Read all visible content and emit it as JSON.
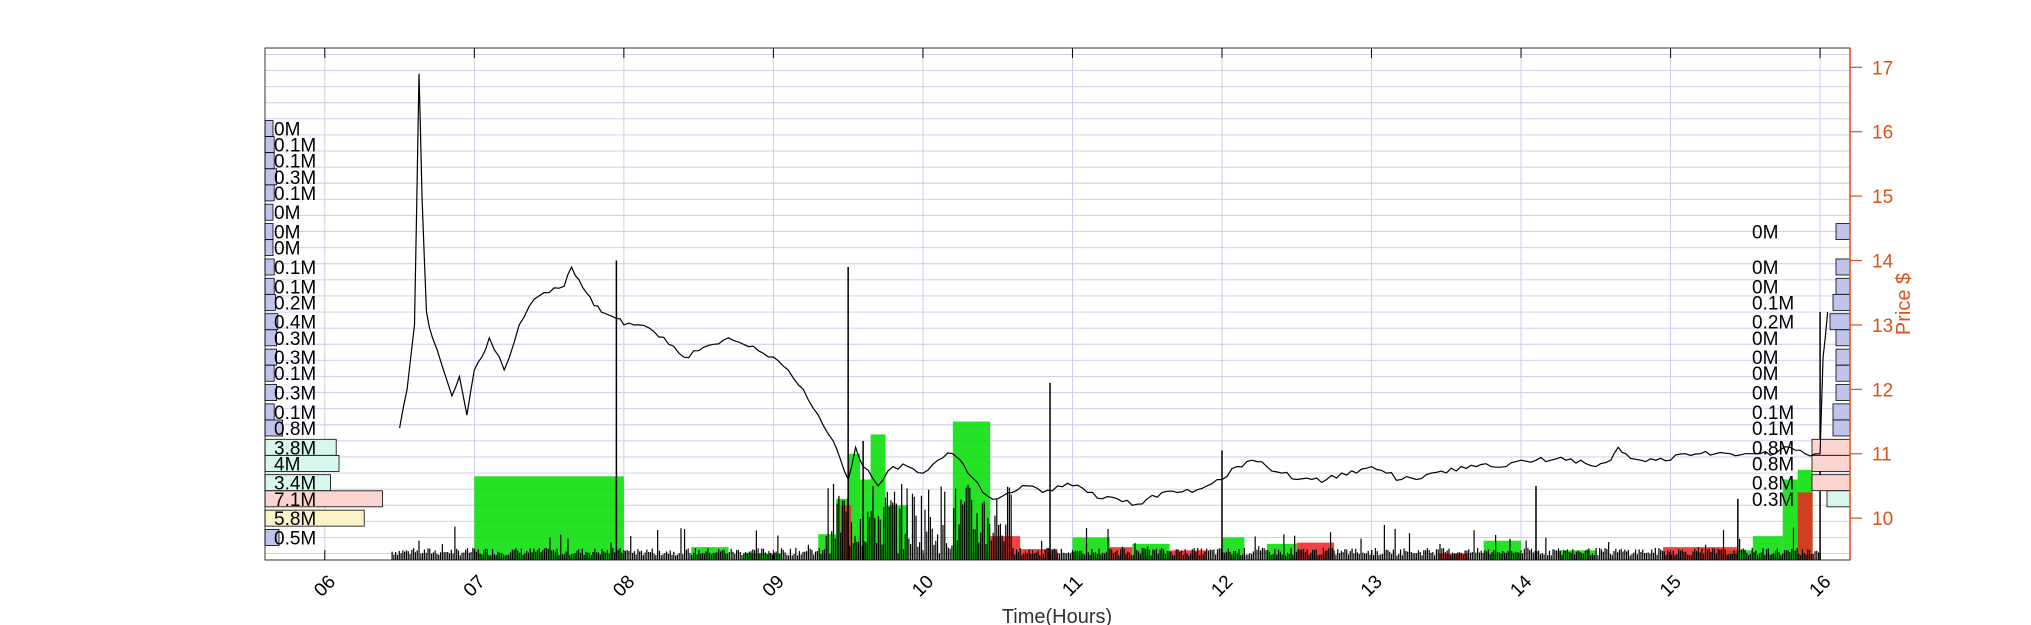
{
  "chart_data": {
    "type": "line",
    "xlabel": "Time(Hours)",
    "ylabel_right": "Price $",
    "x_ticks": [
      "06",
      "07",
      "08",
      "09",
      "10",
      "11",
      "12",
      "13",
      "14",
      "15",
      "16"
    ],
    "x_range": [
      5.6,
      16.2
    ],
    "y_ticks": [
      10,
      11,
      12,
      13,
      14,
      15,
      16,
      17
    ],
    "ylim": [
      9.35,
      17.3
    ],
    "grid": true,
    "price_series": {
      "name": "Price",
      "x": [
        6.5,
        6.55,
        6.6,
        6.63,
        6.65,
        6.68,
        6.72,
        6.78,
        6.85,
        6.9,
        6.95,
        7.0,
        7.05,
        7.1,
        7.2,
        7.3,
        7.4,
        7.5,
        7.6,
        7.65,
        7.7,
        7.75,
        7.8,
        7.85,
        7.95,
        8.0,
        8.1,
        8.2,
        8.3,
        8.4,
        8.5,
        8.6,
        8.7,
        8.8,
        8.9,
        9.0,
        9.1,
        9.2,
        9.3,
        9.4,
        9.45,
        9.5,
        9.55,
        9.6,
        9.7,
        9.8,
        9.9,
        10.0,
        10.1,
        10.2,
        10.25,
        10.3,
        10.4,
        10.5,
        10.6,
        10.7,
        10.8,
        10.9,
        11.0,
        11.1,
        11.2,
        11.3,
        11.4,
        11.5,
        11.6,
        11.7,
        11.8,
        11.9,
        12.0,
        12.1,
        12.2,
        12.3,
        12.4,
        12.5,
        12.6,
        12.7,
        12.8,
        12.9,
        13.0,
        13.1,
        13.2,
        13.3,
        13.4,
        13.5,
        13.6,
        13.7,
        13.8,
        13.9,
        14.0,
        14.1,
        14.2,
        14.3,
        14.4,
        14.5,
        14.6,
        14.65,
        14.7,
        14.8,
        14.9,
        15.0,
        15.1,
        15.2,
        15.3,
        15.4,
        15.5,
        15.6,
        15.7,
        15.8,
        15.9,
        16.0,
        16.02,
        16.05
      ],
      "y": [
        11.4,
        12.0,
        13.0,
        16.9,
        15.0,
        13.2,
        12.8,
        12.4,
        11.9,
        12.2,
        11.6,
        12.3,
        12.5,
        12.8,
        12.3,
        13.0,
        13.4,
        13.5,
        13.6,
        13.9,
        13.7,
        13.5,
        13.3,
        13.2,
        13.1,
        13.0,
        13.0,
        12.9,
        12.7,
        12.5,
        12.6,
        12.7,
        12.8,
        12.7,
        12.6,
        12.5,
        12.3,
        12.0,
        11.6,
        11.2,
        10.9,
        10.6,
        11.1,
        10.8,
        10.5,
        10.8,
        10.8,
        10.7,
        10.9,
        11.0,
        10.9,
        10.7,
        10.4,
        10.3,
        10.4,
        10.5,
        10.4,
        10.5,
        10.5,
        10.4,
        10.3,
        10.3,
        10.2,
        10.3,
        10.4,
        10.4,
        10.4,
        10.5,
        10.6,
        10.8,
        10.9,
        10.8,
        10.7,
        10.6,
        10.6,
        10.6,
        10.7,
        10.7,
        10.8,
        10.7,
        10.6,
        10.6,
        10.7,
        10.7,
        10.8,
        10.8,
        10.8,
        10.8,
        10.9,
        10.9,
        10.9,
        10.9,
        10.9,
        10.8,
        10.9,
        11.1,
        11.0,
        10.9,
        10.9,
        10.9,
        11.0,
        11.0,
        11.0,
        11.0,
        11.0,
        11.0,
        11.0,
        11.1,
        11.0,
        11.0,
        12.5,
        13.2
      ]
    },
    "volume_bars_buy": {
      "color": "#00dd00",
      "ranges": [
        [
          7.0,
          8.0,
          10.65
        ],
        [
          8.45,
          8.7,
          9.55
        ],
        [
          8.8,
          9.05,
          9.45
        ],
        [
          9.3,
          9.42,
          9.75
        ],
        [
          9.42,
          9.5,
          10.3
        ],
        [
          9.5,
          9.58,
          11.0
        ],
        [
          9.58,
          9.65,
          10.6
        ],
        [
          9.65,
          9.75,
          11.3
        ],
        [
          9.75,
          9.9,
          10.2
        ],
        [
          10.2,
          10.45,
          11.5
        ],
        [
          11.0,
          11.25,
          9.7
        ],
        [
          11.4,
          11.65,
          9.6
        ],
        [
          12.3,
          12.5,
          9.6
        ],
        [
          12.0,
          12.15,
          9.7
        ],
        [
          13.75,
          14.0,
          9.65
        ],
        [
          14.25,
          14.5,
          9.5
        ],
        [
          15.35,
          15.55,
          9.5
        ],
        [
          15.55,
          15.75,
          9.72
        ],
        [
          15.75,
          15.85,
          10.6
        ],
        [
          15.85,
          15.95,
          10.75
        ]
      ]
    },
    "volume_bars_sell": {
      "color": "#ee2222",
      "ranges": [
        [
          9.45,
          9.52,
          10.2
        ],
        [
          10.45,
          10.65,
          9.72
        ],
        [
          10.65,
          10.9,
          9.52
        ],
        [
          11.25,
          11.4,
          9.55
        ],
        [
          11.65,
          11.9,
          9.5
        ],
        [
          12.5,
          12.75,
          9.62
        ],
        [
          13.45,
          13.65,
          9.45
        ],
        [
          14.95,
          15.45,
          9.55
        ],
        [
          15.85,
          15.95,
          10.4
        ]
      ]
    },
    "volume_profile_left": [
      {
        "label": "0M",
        "price": 16.05,
        "fill": "#c0c4ec"
      },
      {
        "label": "0.1M",
        "price": 15.8,
        "fill": "#c0c4ec"
      },
      {
        "label": "0.1M",
        "price": 15.55,
        "fill": "#c0c4ec"
      },
      {
        "label": "0.3M",
        "price": 15.3,
        "fill": "#c0c4ec"
      },
      {
        "label": "0.1M",
        "price": 15.05,
        "fill": "#c0c4ec"
      },
      {
        "label": "0M",
        "price": 14.75,
        "fill": "#c0c4ec"
      },
      {
        "label": "0M",
        "price": 14.45,
        "fill": "#c0c4ec"
      },
      {
        "label": "0M",
        "price": 14.2,
        "fill": "#c0c4ec"
      },
      {
        "label": "0.1M",
        "price": 13.9,
        "fill": "#c0c4ec"
      },
      {
        "label": "0.1M",
        "price": 13.6,
        "fill": "#c0c4ec"
      },
      {
        "label": "0.2M",
        "price": 13.35,
        "fill": "#c0c4ec"
      },
      {
        "label": "0.4M",
        "price": 13.05,
        "fill": "#c0c4ec"
      },
      {
        "label": "0.3M",
        "price": 12.8,
        "fill": "#c0c4ec"
      },
      {
        "label": "0.3M",
        "price": 12.5,
        "fill": "#c0c4ec"
      },
      {
        "label": "0.1M",
        "price": 12.25,
        "fill": "#c0c4ec"
      },
      {
        "label": "0.3M",
        "price": 11.95,
        "fill": "#c0c4ec"
      },
      {
        "label": "0.1M",
        "price": 11.65,
        "fill": "#c0c4ec"
      },
      {
        "label": "0.8M",
        "price": 11.4,
        "fill": "#c0c4ec"
      },
      {
        "label": "3.8M",
        "price": 11.1,
        "fill": "#d8f8ee"
      },
      {
        "label": "4M",
        "price": 10.85,
        "fill": "#d8f8ee"
      },
      {
        "label": "3.4M",
        "price": 10.55,
        "fill": "#d8f8ee"
      },
      {
        "label": "7.1M",
        "price": 10.3,
        "fill": "#fcd4d0"
      },
      {
        "label": "5.8M",
        "price": 10.0,
        "fill": "#fcf2c8"
      },
      {
        "label": "0.5M",
        "price": 9.7,
        "fill": "#c0c4ec"
      }
    ],
    "volume_profile_right": [
      {
        "label": "0M",
        "price": 14.45,
        "fill": "#c0c4ec"
      },
      {
        "label": "0M",
        "price": 13.9,
        "fill": "#c0c4ec"
      },
      {
        "label": "0M",
        "price": 13.6,
        "fill": "#c0c4ec"
      },
      {
        "label": "0.1M",
        "price": 13.35,
        "fill": "#c0c4ec"
      },
      {
        "label": "0.2M",
        "price": 13.05,
        "fill": "#c0c4ec"
      },
      {
        "label": "0M",
        "price": 12.8,
        "fill": "#c0c4ec"
      },
      {
        "label": "0M",
        "price": 12.5,
        "fill": "#c0c4ec"
      },
      {
        "label": "0M",
        "price": 12.25,
        "fill": "#c0c4ec"
      },
      {
        "label": "0M",
        "price": 11.95,
        "fill": "#c0c4ec"
      },
      {
        "label": "0.1M",
        "price": 11.65,
        "fill": "#c0c4ec"
      },
      {
        "label": "0.1M",
        "price": 11.4,
        "fill": "#c0c4ec"
      },
      {
        "label": "0.8M",
        "price": 11.1,
        "fill": "#fcd4d0"
      },
      {
        "label": "0.8M",
        "price": 10.85,
        "fill": "#fcd4d0"
      },
      {
        "label": "0.8M",
        "price": 10.55,
        "fill": "#fcd4d0"
      },
      {
        "label": "0.3M",
        "price": 10.3,
        "fill": "#d8f8ee"
      }
    ],
    "colors": {
      "price_axis": "#d95319",
      "grid": "#c8c8f0",
      "price_line": "#000000"
    }
  }
}
